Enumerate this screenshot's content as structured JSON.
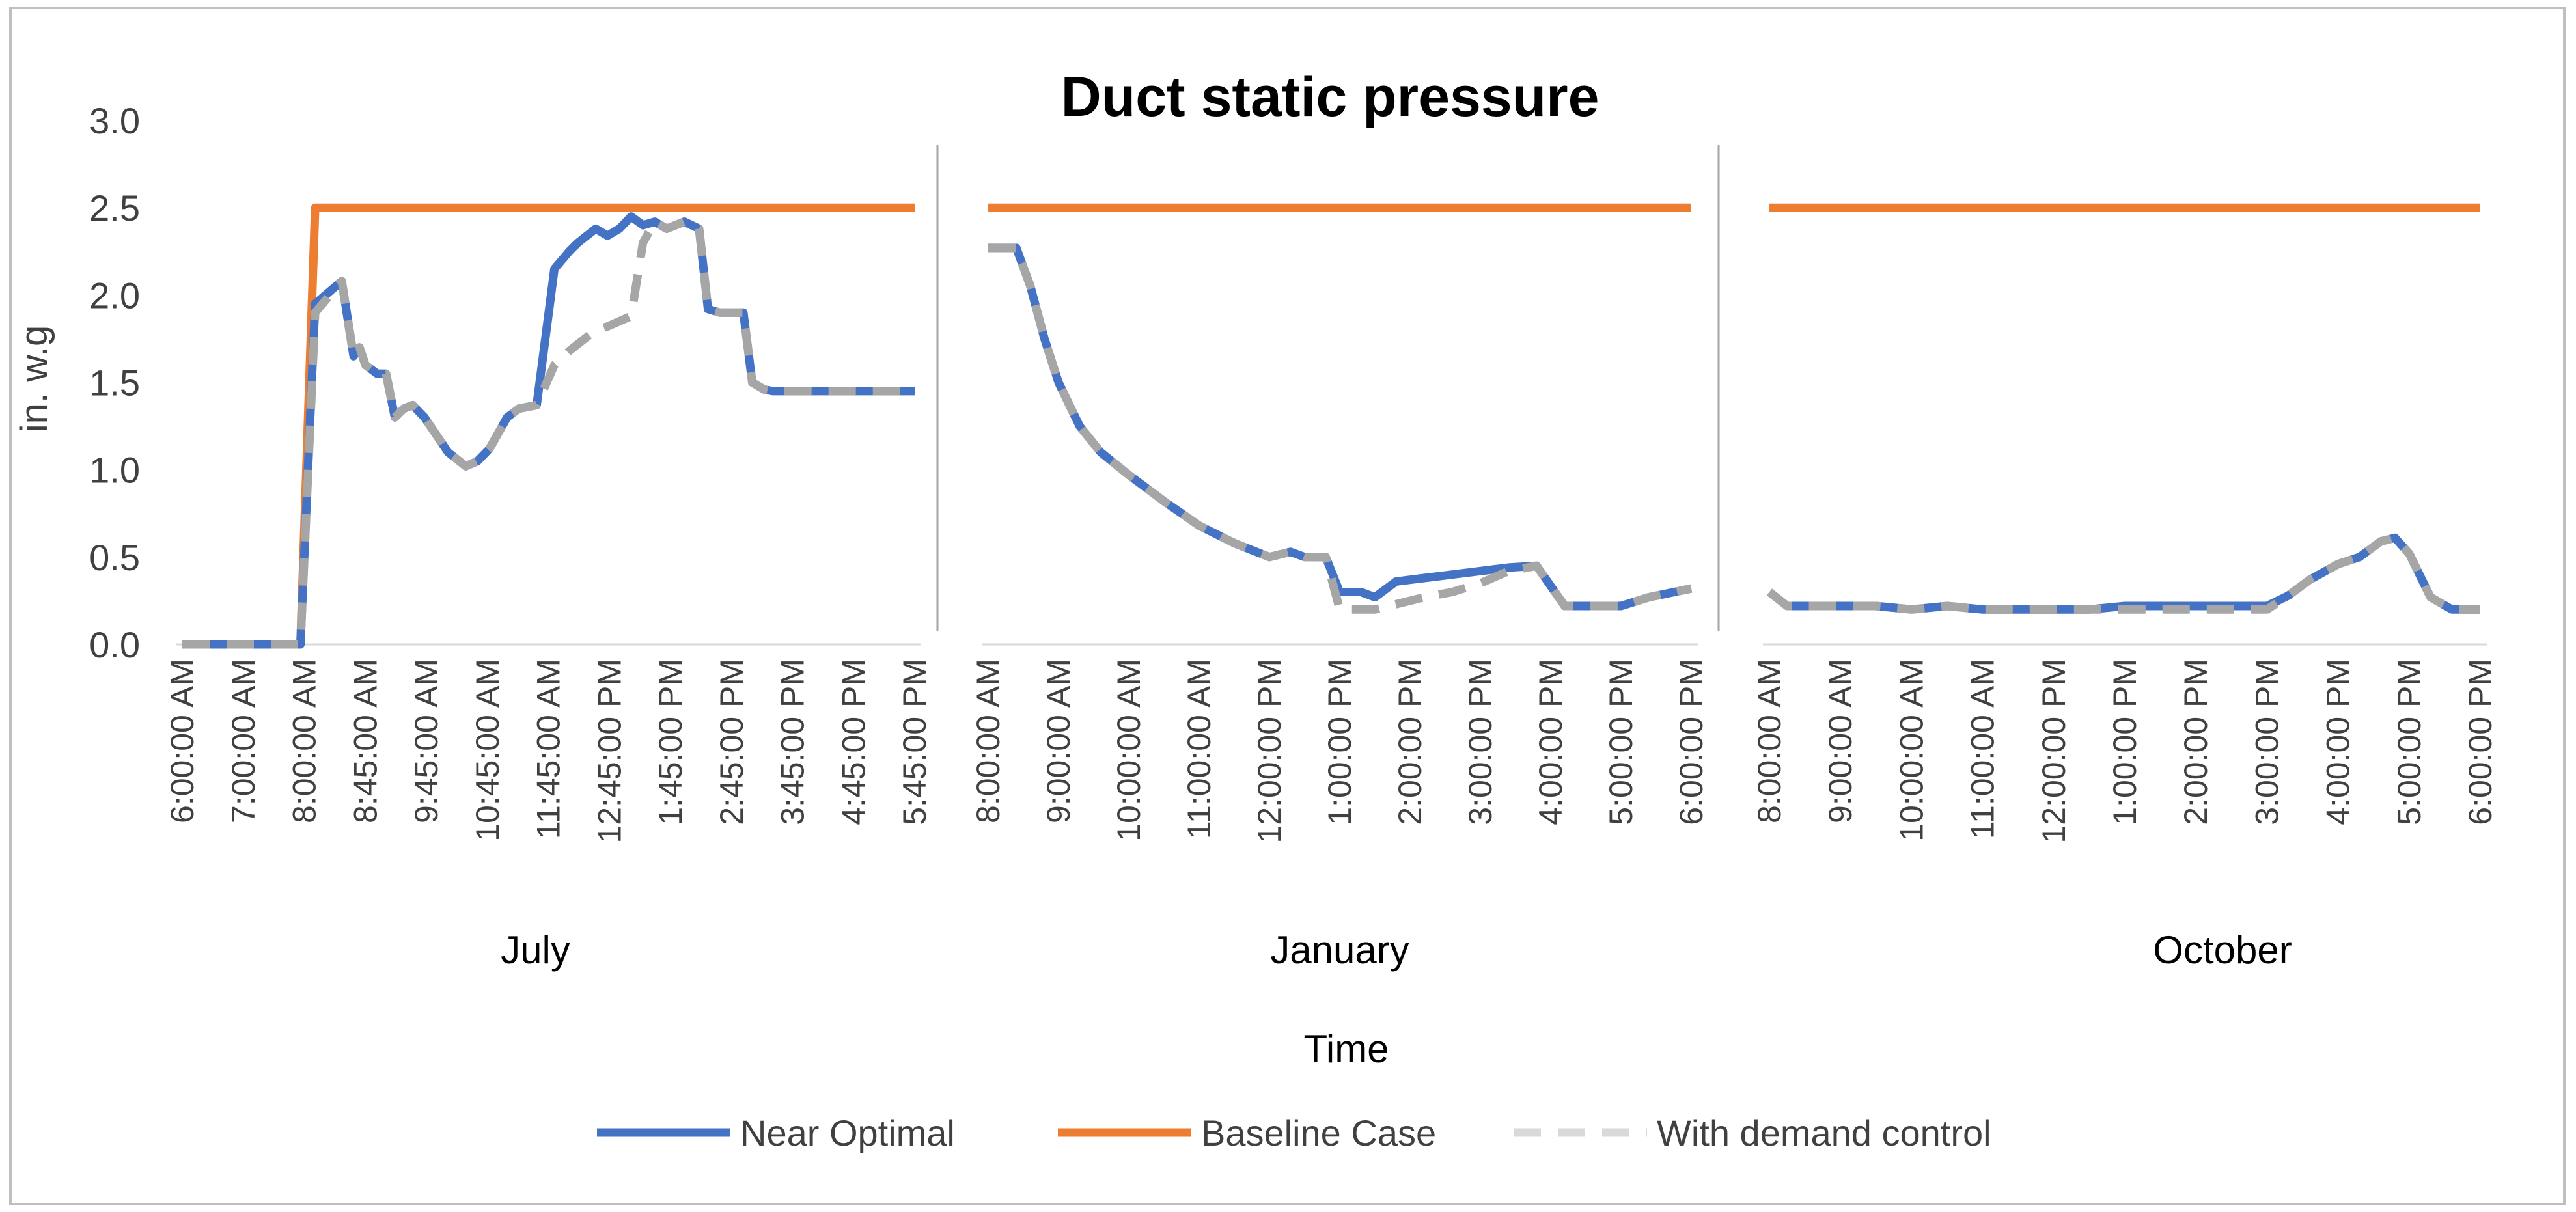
{
  "chart_data": {
    "type": "line",
    "title": "Duct static pressure",
    "ylabel": "in. w.g",
    "xlabel": "Time",
    "ylim": [
      0,
      3.0
    ],
    "yticks": [
      "0.0",
      "0.5",
      "1.0",
      "1.5",
      "2.0",
      "2.5",
      "3.0"
    ],
    "legend": {
      "position": "bottom",
      "entries": [
        "Near Optimal",
        "Baseline Case",
        "With demand control"
      ]
    },
    "colors": {
      "near_optimal": "#4472C4",
      "baseline": "#ED7D31",
      "demand": "#A6A6A6",
      "demand_light": "#D9D9D9",
      "frame": "#BFBFBF",
      "separator": "#A6A6A6"
    },
    "groups": [
      {
        "label": "July",
        "tick_labels": [
          "6:00:00 AM",
          "7:00:00 AM",
          "8:00:00 AM",
          "8:45:00 AM",
          "9:45:00 AM",
          "10:45:00 AM",
          "11:45:00 AM",
          "12:45:00 PM",
          "1:45:00 PM",
          "2:45:00 PM",
          "3:45:00 PM",
          "4:45:00 PM",
          "5:45:00 PM"
        ],
        "series": [
          {
            "name": "Baseline Case",
            "x": [
              0,
              0.85,
              2,
              2.25,
              12.4
            ],
            "y": [
              0,
              0,
              0,
              2.5,
              2.5
            ]
          },
          {
            "name": "Near Optimal",
            "x": [
              0,
              0.5,
              1,
              1.5,
              2,
              2.25,
              2.7,
              2.9,
              3,
              3.1,
              3.3,
              3.45,
              3.6,
              3.75,
              3.9,
              4.1,
              4.3,
              4.5,
              4.8,
              5,
              5.2,
              5.5,
              5.7,
              6,
              6.3,
              6.55,
              6.7,
              7,
              7.2,
              7.4,
              7.6,
              7.8,
              8.0,
              8.2,
              8.5,
              8.75,
              8.9,
              9.1,
              9.3,
              9.5,
              9.65,
              9.85,
              10,
              10.3,
              10.6,
              11,
              11.2,
              11.5,
              11.8,
              12.4
            ],
            "y": [
              0,
              0,
              0,
              0,
              0,
              1.95,
              2.08,
              1.65,
              1.7,
              1.6,
              1.55,
              1.55,
              1.3,
              1.35,
              1.37,
              1.3,
              1.2,
              1.1,
              1.02,
              1.05,
              1.12,
              1.3,
              1.35,
              1.37,
              2.15,
              2.25,
              2.3,
              2.38,
              2.34,
              2.38,
              2.45,
              2.4,
              2.42,
              2.38,
              2.42,
              2.38,
              1.92,
              1.9,
              1.9,
              1.9,
              1.5,
              1.46,
              1.45,
              1.45,
              1.45,
              1.45,
              1.45,
              1.45,
              1.45,
              1.45
            ]
          },
          {
            "name": "With demand control",
            "x": [
              0,
              0.5,
              1,
              1.5,
              2,
              2.25,
              2.7,
              2.9,
              3,
              3.1,
              3.3,
              3.45,
              3.6,
              3.75,
              3.9,
              4.1,
              4.3,
              4.5,
              4.8,
              5,
              5.2,
              5.5,
              5.7,
              6,
              6.3,
              6.55,
              6.7,
              7,
              7.2,
              7.4,
              7.6,
              7.8,
              8.0,
              8.2,
              8.5,
              8.75,
              8.9,
              9.1,
              9.3,
              9.5,
              9.65,
              9.85,
              10,
              10.3,
              10.6,
              11,
              11.2,
              11.5,
              11.8,
              12.4
            ],
            "y": [
              0,
              0,
              0,
              0,
              0,
              1.9,
              2.08,
              1.65,
              1.7,
              1.6,
              1.55,
              1.55,
              1.3,
              1.35,
              1.37,
              1.3,
              1.2,
              1.1,
              1.02,
              1.05,
              1.12,
              1.3,
              1.35,
              1.37,
              1.6,
              1.68,
              1.72,
              1.8,
              1.82,
              1.85,
              1.88,
              2.3,
              2.42,
              2.38,
              2.42,
              2.38,
              1.92,
              1.9,
              1.9,
              1.9,
              1.5,
              1.46,
              1.45,
              1.45,
              1.45,
              1.45,
              1.45,
              1.45,
              1.45,
              1.45
            ]
          }
        ]
      },
      {
        "label": "January",
        "tick_labels": [
          "8:00:00 AM",
          "9:00:00 AM",
          "10:00:00 AM",
          "11:00:00 AM",
          "12:00:00 PM",
          "1:00:00 PM",
          "2:00:00 PM",
          "3:00:00 PM",
          "4:00:00 PM",
          "5:00:00 PM",
          "6:00:00 PM"
        ],
        "series": [
          {
            "name": "Baseline Case",
            "x": [
              0,
              10
            ],
            "y": [
              2.5,
              2.5
            ]
          },
          {
            "name": "Near Optimal",
            "x": [
              0,
              0.4,
              0.6,
              0.8,
              1.0,
              1.3,
              1.6,
              2.0,
              2.5,
              3.0,
              3.5,
              4.0,
              4.3,
              4.5,
              4.8,
              5.0,
              5.3,
              5.5,
              5.8,
              6.2,
              6.6,
              7.0,
              7.4,
              7.8,
              8.2,
              8.6,
              9.0,
              9.4,
              10.0
            ],
            "y": [
              2.27,
              2.27,
              2.05,
              1.75,
              1.5,
              1.25,
              1.1,
              0.97,
              0.82,
              0.68,
              0.58,
              0.5,
              0.53,
              0.5,
              0.5,
              0.3,
              0.3,
              0.27,
              0.36,
              0.38,
              0.4,
              0.42,
              0.44,
              0.45,
              0.22,
              0.22,
              0.22,
              0.27,
              0.32
            ]
          },
          {
            "name": "With demand control",
            "x": [
              0,
              0.4,
              0.6,
              0.8,
              1.0,
              1.3,
              1.6,
              2.0,
              2.5,
              3.0,
              3.5,
              4.0,
              4.3,
              4.5,
              4.8,
              5.0,
              5.3,
              5.5,
              5.8,
              6.2,
              6.6,
              7.0,
              7.4,
              7.8,
              8.2,
              8.6,
              9.0,
              9.4,
              10.0
            ],
            "y": [
              2.27,
              2.27,
              2.05,
              1.75,
              1.5,
              1.25,
              1.1,
              0.97,
              0.82,
              0.68,
              0.58,
              0.5,
              0.53,
              0.5,
              0.5,
              0.2,
              0.2,
              0.2,
              0.23,
              0.27,
              0.3,
              0.35,
              0.42,
              0.45,
              0.22,
              0.22,
              0.22,
              0.27,
              0.32
            ]
          }
        ]
      },
      {
        "label": "October",
        "tick_labels": [
          "8:00:00 AM",
          "9:00:00 AM",
          "10:00:00 AM",
          "11:00:00 AM",
          "12:00:00 PM",
          "1:00:00 PM",
          "2:00:00 PM",
          "3:00:00 PM",
          "4:00:00 PM",
          "5:00:00 PM",
          "6:00:00 PM"
        ],
        "series": [
          {
            "name": "Baseline Case",
            "x": [
              0,
              10
            ],
            "y": [
              2.5,
              2.5
            ]
          },
          {
            "name": "Near Optimal",
            "x": [
              0,
              0.25,
              0.5,
              1,
              1.5,
              2,
              2.5,
              3,
              3.5,
              4,
              4.5,
              5,
              5.5,
              6,
              6.5,
              7,
              7.3,
              7.6,
              8.0,
              8.3,
              8.6,
              8.8,
              9.0,
              9.3,
              9.6,
              10
            ],
            "y": [
              0.3,
              0.22,
              0.22,
              0.22,
              0.22,
              0.2,
              0.22,
              0.2,
              0.2,
              0.2,
              0.2,
              0.22,
              0.22,
              0.22,
              0.22,
              0.22,
              0.28,
              0.37,
              0.46,
              0.5,
              0.59,
              0.61,
              0.52,
              0.27,
              0.2,
              0.2
            ]
          },
          {
            "name": "With demand control",
            "x": [
              0,
              0.25,
              0.5,
              1,
              1.5,
              2,
              2.5,
              3,
              3.5,
              4,
              4.5,
              5,
              5.5,
              6,
              6.5,
              7,
              7.3,
              7.6,
              8.0,
              8.3,
              8.6,
              8.8,
              9.0,
              9.3,
              9.6,
              10
            ],
            "y": [
              0.3,
              0.22,
              0.22,
              0.22,
              0.22,
              0.2,
              0.22,
              0.2,
              0.2,
              0.2,
              0.2,
              0.2,
              0.2,
              0.2,
              0.2,
              0.2,
              0.28,
              0.37,
              0.46,
              0.5,
              0.59,
              0.61,
              0.52,
              0.27,
              0.2,
              0.2
            ]
          }
        ]
      }
    ]
  }
}
